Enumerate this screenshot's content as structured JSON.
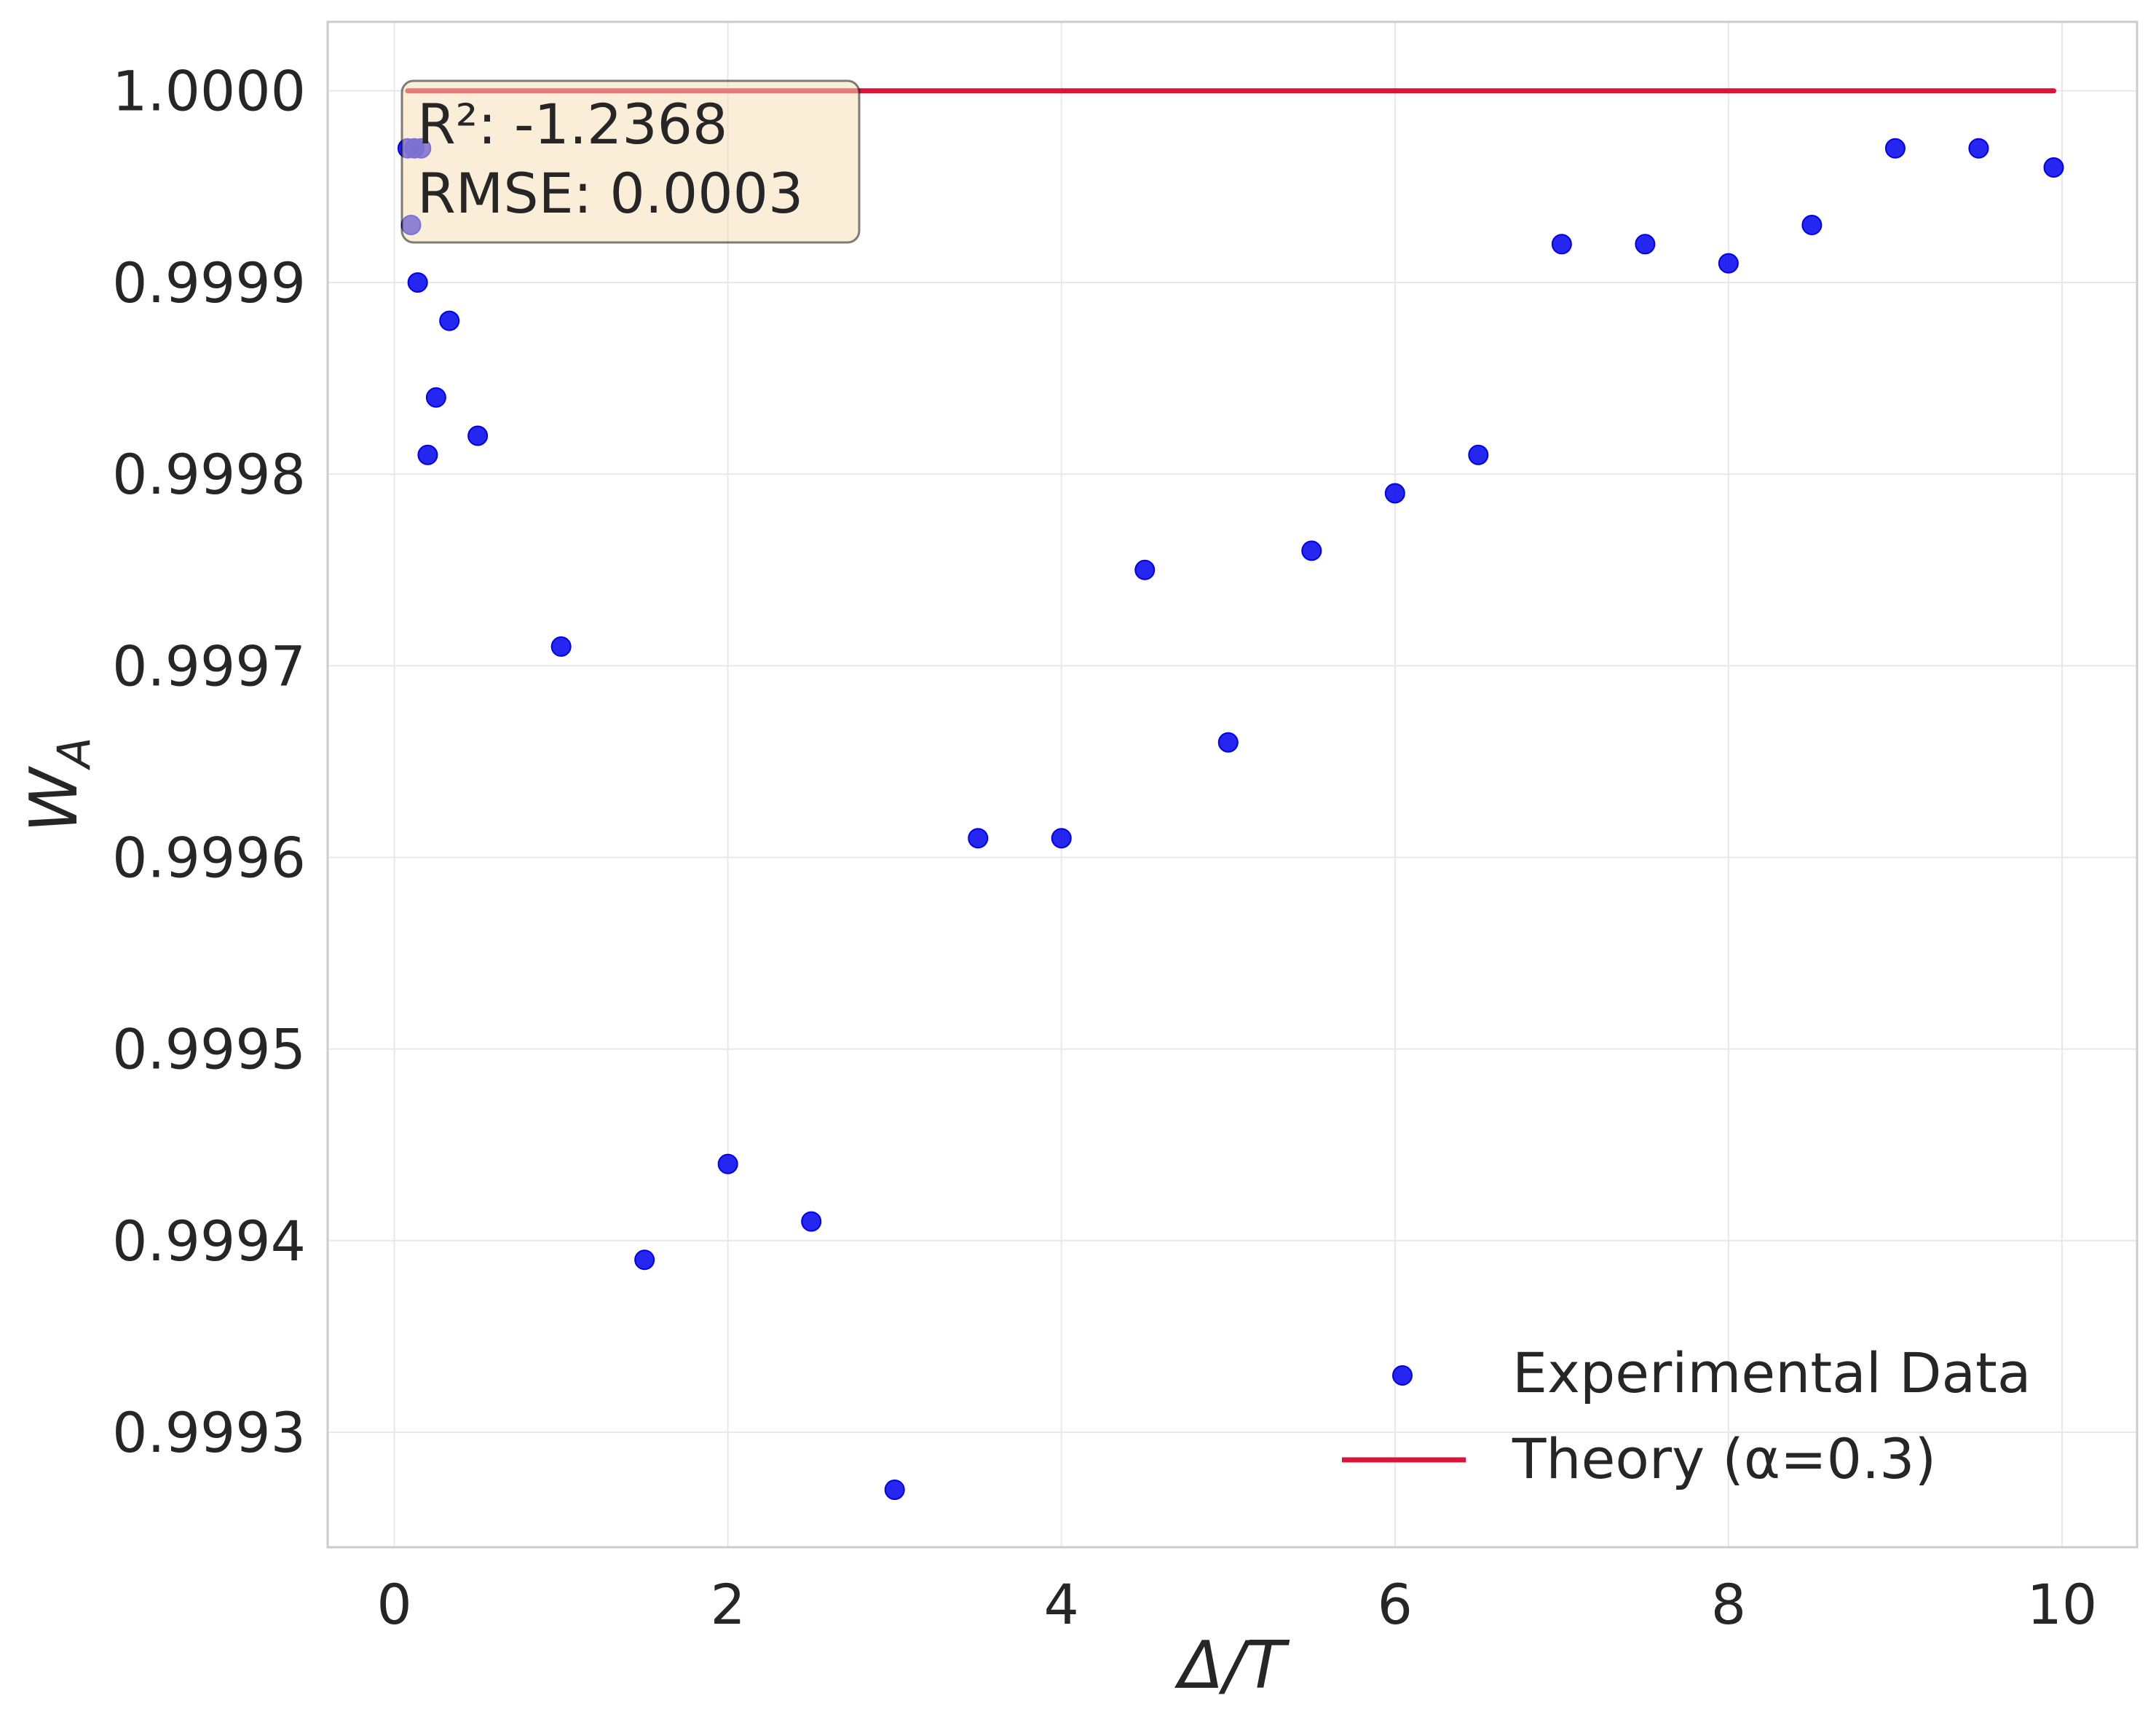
{
  "chart_data": {
    "type": "scatter",
    "xlabel": "Δ/T",
    "ylabel_main": "W",
    "ylabel_sub": "A",
    "xlim": [
      -0.4,
      10.45
    ],
    "ylim": [
      0.99924,
      1.000036
    ],
    "xticks": [
      0,
      2,
      4,
      6,
      8,
      10
    ],
    "xtick_labels": [
      "0",
      "2",
      "4",
      "6",
      "8",
      "10"
    ],
    "yticks": [
      0.9993,
      0.9994,
      0.9995,
      0.9996,
      0.9997,
      0.9998,
      0.9999,
      1.0
    ],
    "ytick_labels": [
      "0.9993",
      "0.9994",
      "0.9995",
      "0.9996",
      "0.9997",
      "0.9998",
      "0.9999",
      "1.0000"
    ],
    "grid": true,
    "legend_position": "lower-right",
    "stats_box": [
      "R²: -1.2368",
      "RMSE: 0.0003"
    ],
    "series": [
      {
        "name": "Experimental Data",
        "kind": "scatter",
        "color": "#0000ee",
        "points": [
          [
            0.08,
            0.99997
          ],
          [
            0.12,
            0.99997
          ],
          [
            0.16,
            0.99997
          ],
          [
            0.1,
            0.99993
          ],
          [
            0.14,
            0.9999
          ],
          [
            0.2,
            0.99981
          ],
          [
            0.25,
            0.99984
          ],
          [
            0.33,
            0.99988
          ],
          [
            0.5,
            0.99982
          ],
          [
            1.0,
            0.99971
          ],
          [
            1.5,
            0.99939
          ],
          [
            2.0,
            0.99944
          ],
          [
            2.5,
            0.99941
          ],
          [
            3.0,
            0.99927
          ],
          [
            3.5,
            0.99961
          ],
          [
            4.0,
            0.99961
          ],
          [
            4.5,
            0.99975
          ],
          [
            5.0,
            0.99966
          ],
          [
            5.5,
            0.99976
          ],
          [
            6.0,
            0.99979
          ],
          [
            6.5,
            0.99981
          ],
          [
            7.0,
            0.99992
          ],
          [
            7.5,
            0.99992
          ],
          [
            8.0,
            0.99991
          ],
          [
            8.5,
            0.99993
          ],
          [
            9.0,
            0.99997
          ],
          [
            9.5,
            0.99997
          ],
          [
            9.95,
            0.99996
          ]
        ]
      },
      {
        "name": "Theory (α=0.3)",
        "kind": "line",
        "color": "#dc143c",
        "points": [
          [
            0.08,
            1.0
          ],
          [
            9.95,
            1.0
          ]
        ]
      }
    ]
  }
}
